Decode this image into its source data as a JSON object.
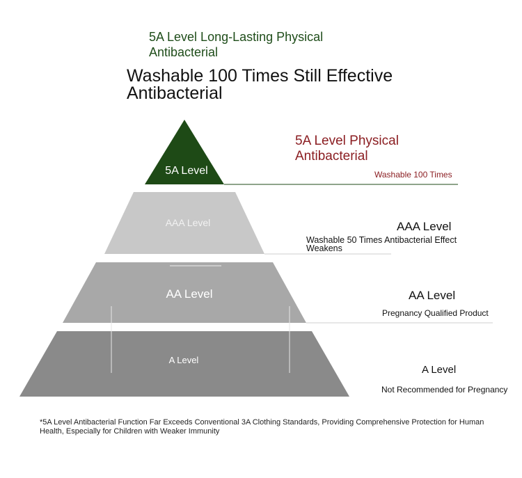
{
  "header": {
    "subtitle": "5A Level Long-Lasting Physical Antibacterial",
    "title": "Washable 100 Times Still Effective Antibacterial"
  },
  "pyramid": {
    "tiers": [
      {
        "label": "5A Level",
        "color": "#1e4a16"
      },
      {
        "label": "AAA Level",
        "color": "#c8c8c8"
      },
      {
        "label": "AA Level",
        "color": "#a8a8a8"
      },
      {
        "label": "A Level",
        "color": "#8a8a8a"
      }
    ]
  },
  "levels": {
    "l5a": {
      "title": "5A Level Physical Antibacterial",
      "desc": "Washable 100 Times",
      "color": "#8b1e22"
    },
    "laaa": {
      "title": "AAA Level",
      "desc": "Washable 50 Times Antibacterial Effect Weakens"
    },
    "laa": {
      "title": "AA Level",
      "desc": "Pregnancy Qualified Product"
    },
    "la": {
      "title": "A Level",
      "desc": "Not Recommended for Pregnancy"
    }
  },
  "footnote": "*5A Level Antibacterial Function Far Exceeds Conventional 3A Clothing Standards, Providing Comprehensive Protection for Human Health, Especially for Children with Weaker Immunity"
}
